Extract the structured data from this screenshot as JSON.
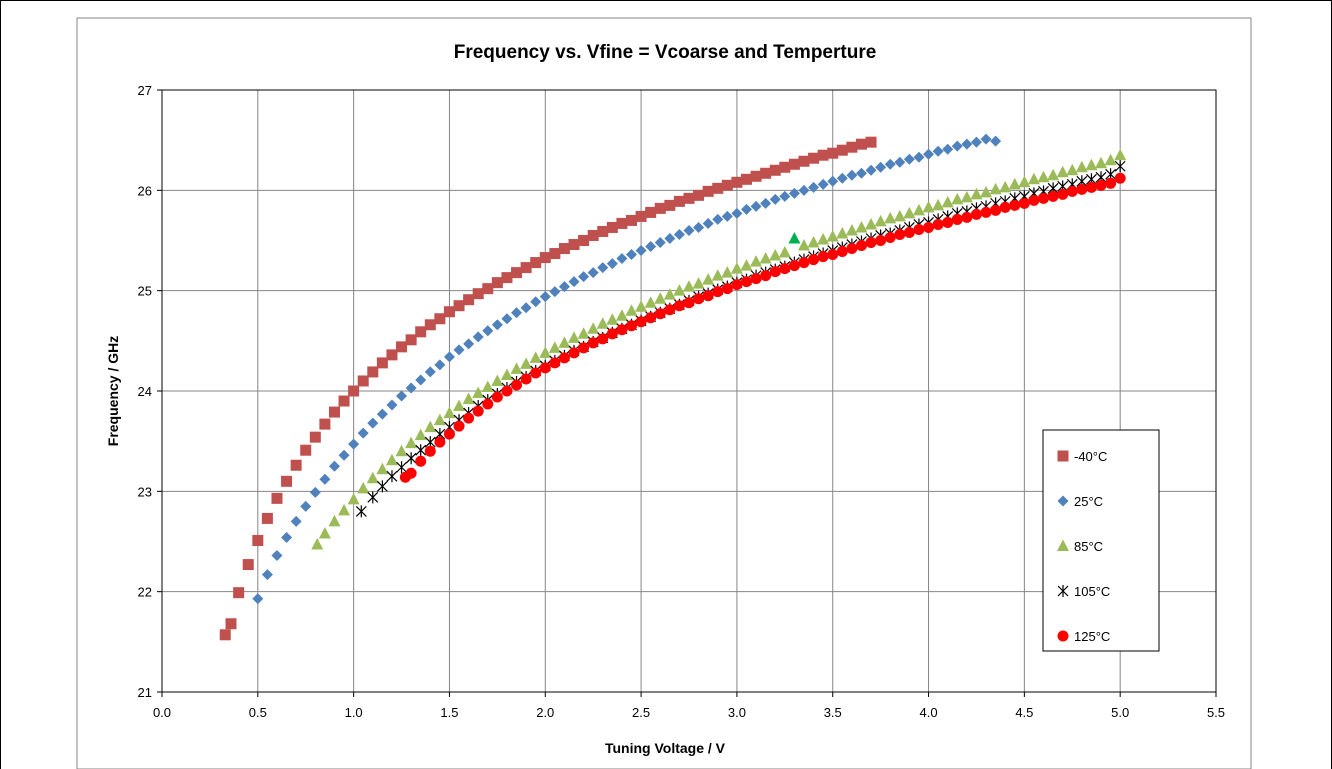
{
  "chart_data": {
    "type": "scatter",
    "title": "Frequency vs. Vfine = Vcoarse and Temperture",
    "xlabel": "Tuning Voltage / V",
    "ylabel": "Frequency / GHz",
    "xlim": [
      0.0,
      5.5
    ],
    "ylim": [
      21,
      27
    ],
    "x_ticks": [
      "0.0",
      "0.5",
      "1.0",
      "1.5",
      "2.0",
      "2.5",
      "3.0",
      "3.5",
      "4.0",
      "4.5",
      "5.0",
      "5.5"
    ],
    "y_ticks": [
      "21",
      "22",
      "23",
      "24",
      "25",
      "26",
      "27"
    ],
    "grid": true,
    "legend_position": "right",
    "series": [
      {
        "name": "-40°C",
        "marker": "square",
        "color": "#C0504D",
        "x": [
          0.33,
          0.36,
          0.4,
          0.45,
          0.5,
          0.55,
          0.6,
          0.65,
          0.7,
          0.75,
          0.8,
          0.85,
          0.9,
          0.95,
          1.0,
          1.05,
          1.1,
          1.15,
          1.2,
          1.25,
          1.3,
          1.35,
          1.4,
          1.45,
          1.5,
          1.55,
          1.6,
          1.65,
          1.7,
          1.75,
          1.8,
          1.85,
          1.9,
          1.95,
          2.0,
          2.05,
          2.1,
          2.15,
          2.2,
          2.25,
          2.3,
          2.35,
          2.4,
          2.45,
          2.5,
          2.55,
          2.6,
          2.65,
          2.7,
          2.75,
          2.8,
          2.85,
          2.9,
          2.95,
          3.0,
          3.05,
          3.1,
          3.15,
          3.2,
          3.25,
          3.3,
          3.35,
          3.4,
          3.45,
          3.5,
          3.55,
          3.6,
          3.65,
          3.7
        ],
        "y": [
          21.57,
          21.68,
          21.99,
          22.27,
          22.51,
          22.73,
          22.93,
          23.1,
          23.26,
          23.41,
          23.54,
          23.67,
          23.79,
          23.9,
          24.0,
          24.1,
          24.19,
          24.28,
          24.36,
          24.44,
          24.51,
          24.59,
          24.66,
          24.72,
          24.79,
          24.85,
          24.91,
          24.97,
          25.02,
          25.08,
          25.13,
          25.18,
          25.23,
          25.28,
          25.33,
          25.37,
          25.42,
          25.46,
          25.5,
          25.55,
          25.59,
          25.63,
          25.67,
          25.7,
          25.74,
          25.78,
          25.82,
          25.85,
          25.89,
          25.92,
          25.95,
          25.99,
          26.02,
          26.05,
          26.08,
          26.11,
          26.14,
          26.17,
          26.2,
          26.23,
          26.26,
          26.29,
          26.32,
          26.35,
          26.37,
          26.4,
          26.43,
          26.46,
          26.48
        ]
      },
      {
        "name": "25°C",
        "marker": "diamond",
        "color": "#4F81BD",
        "x": [
          0.5,
          0.55,
          0.6,
          0.65,
          0.7,
          0.75,
          0.8,
          0.85,
          0.9,
          0.95,
          1.0,
          1.05,
          1.1,
          1.15,
          1.2,
          1.25,
          1.3,
          1.35,
          1.4,
          1.45,
          1.5,
          1.55,
          1.6,
          1.65,
          1.7,
          1.75,
          1.8,
          1.85,
          1.9,
          1.95,
          2.0,
          2.05,
          2.1,
          2.15,
          2.2,
          2.25,
          2.3,
          2.35,
          2.4,
          2.45,
          2.5,
          2.55,
          2.6,
          2.65,
          2.7,
          2.75,
          2.8,
          2.85,
          2.9,
          2.95,
          3.0,
          3.05,
          3.1,
          3.15,
          3.2,
          3.25,
          3.3,
          3.35,
          3.4,
          3.45,
          3.5,
          3.55,
          3.6,
          3.65,
          3.7,
          3.75,
          3.8,
          3.85,
          3.9,
          3.95,
          4.0,
          4.05,
          4.1,
          4.15,
          4.2,
          4.25,
          4.3,
          4.35
        ],
        "y": [
          21.93,
          22.17,
          22.36,
          22.54,
          22.7,
          22.85,
          22.99,
          23.12,
          23.25,
          23.36,
          23.47,
          23.58,
          23.68,
          23.77,
          23.86,
          23.95,
          24.03,
          24.11,
          24.19,
          24.26,
          24.34,
          24.41,
          24.47,
          24.54,
          24.6,
          24.66,
          24.72,
          24.78,
          24.83,
          24.89,
          24.94,
          24.99,
          25.04,
          25.09,
          25.14,
          25.18,
          25.23,
          25.27,
          25.32,
          25.36,
          25.4,
          25.44,
          25.48,
          25.52,
          25.56,
          25.6,
          25.63,
          25.67,
          25.71,
          25.74,
          25.77,
          25.81,
          25.84,
          25.87,
          25.91,
          25.94,
          25.97,
          26.0,
          26.03,
          26.06,
          26.09,
          26.12,
          26.15,
          26.17,
          26.2,
          26.23,
          26.26,
          26.28,
          26.31,
          26.33,
          26.36,
          26.39,
          26.41,
          26.44,
          26.46,
          26.48,
          26.51,
          26.49
        ]
      },
      {
        "name": "85°C",
        "marker": "triangle",
        "color": "#9BBB59",
        "x": [
          0.81,
          0.85,
          0.9,
          0.95,
          1.0,
          1.05,
          1.1,
          1.15,
          1.2,
          1.25,
          1.3,
          1.35,
          1.4,
          1.45,
          1.5,
          1.55,
          1.6,
          1.65,
          1.7,
          1.75,
          1.8,
          1.85,
          1.9,
          1.95,
          2.0,
          2.05,
          2.1,
          2.15,
          2.2,
          2.25,
          2.3,
          2.35,
          2.4,
          2.45,
          2.5,
          2.55,
          2.6,
          2.65,
          2.7,
          2.75,
          2.8,
          2.85,
          2.9,
          2.95,
          3.0,
          3.05,
          3.1,
          3.15,
          3.2,
          3.25,
          3.3,
          3.35,
          3.4,
          3.45,
          3.5,
          3.55,
          3.6,
          3.65,
          3.7,
          3.75,
          3.8,
          3.85,
          3.9,
          3.95,
          4.0,
          4.05,
          4.1,
          4.15,
          4.2,
          4.25,
          4.3,
          4.35,
          4.4,
          4.45,
          4.5,
          4.55,
          4.6,
          4.65,
          4.7,
          4.75,
          4.8,
          4.85,
          4.9,
          4.95,
          5.0
        ],
        "y": [
          22.47,
          22.58,
          22.7,
          22.81,
          22.92,
          23.03,
          23.13,
          23.22,
          23.31,
          23.4,
          23.48,
          23.56,
          23.64,
          23.71,
          23.78,
          23.85,
          23.92,
          23.98,
          24.04,
          24.1,
          24.16,
          24.22,
          24.27,
          24.33,
          24.38,
          24.43,
          24.48,
          24.53,
          24.57,
          24.62,
          24.67,
          24.71,
          24.75,
          24.8,
          24.84,
          24.88,
          24.92,
          24.96,
          25.0,
          25.04,
          25.07,
          25.11,
          25.15,
          25.18,
          25.22,
          25.25,
          25.29,
          25.32,
          25.35,
          25.38,
          25.52,
          25.45,
          25.48,
          25.51,
          25.54,
          25.57,
          25.6,
          25.63,
          25.66,
          25.69,
          25.72,
          25.74,
          25.77,
          25.8,
          25.83,
          25.85,
          25.88,
          25.91,
          25.93,
          25.96,
          25.98,
          26.01,
          26.03,
          26.06,
          26.08,
          26.11,
          26.13,
          26.15,
          26.18,
          26.2,
          26.23,
          26.25,
          26.27,
          26.3,
          26.35
        ]
      },
      {
        "name": "105°C",
        "marker": "asterisk",
        "color": "#000000",
        "x": [
          1.04,
          1.1,
          1.15,
          1.2,
          1.25,
          1.3,
          1.35,
          1.4,
          1.45,
          1.5,
          1.55,
          1.6,
          1.65,
          1.7,
          1.75,
          1.8,
          1.85,
          1.9,
          1.95,
          2.0,
          2.05,
          2.1,
          2.15,
          2.2,
          2.25,
          2.3,
          2.35,
          2.4,
          2.45,
          2.5,
          2.55,
          2.6,
          2.65,
          2.7,
          2.75,
          2.8,
          2.85,
          2.9,
          2.95,
          3.0,
          3.05,
          3.1,
          3.15,
          3.2,
          3.25,
          3.3,
          3.35,
          3.4,
          3.45,
          3.5,
          3.55,
          3.6,
          3.65,
          3.7,
          3.75,
          3.8,
          3.85,
          3.9,
          3.95,
          4.0,
          4.05,
          4.1,
          4.15,
          4.2,
          4.25,
          4.3,
          4.35,
          4.4,
          4.45,
          4.5,
          4.55,
          4.6,
          4.65,
          4.7,
          4.75,
          4.8,
          4.85,
          4.9,
          4.95,
          5.0
        ],
        "y": [
          22.8,
          22.94,
          23.05,
          23.15,
          23.24,
          23.33,
          23.41,
          23.49,
          23.57,
          23.64,
          23.71,
          23.78,
          23.85,
          23.91,
          23.97,
          24.03,
          24.09,
          24.14,
          24.2,
          24.25,
          24.3,
          24.35,
          24.4,
          24.44,
          24.49,
          24.53,
          24.58,
          24.62,
          24.66,
          24.7,
          24.74,
          24.78,
          24.82,
          24.86,
          24.9,
          24.94,
          24.97,
          25.01,
          25.04,
          25.08,
          25.11,
          25.15,
          25.18,
          25.21,
          25.24,
          25.28,
          25.31,
          25.34,
          25.37,
          25.4,
          25.43,
          25.46,
          25.49,
          25.52,
          25.55,
          25.57,
          25.6,
          25.63,
          25.66,
          25.68,
          25.71,
          25.74,
          25.77,
          25.79,
          25.82,
          25.84,
          25.87,
          25.89,
          25.92,
          25.94,
          25.97,
          25.99,
          26.02,
          26.04,
          26.06,
          26.09,
          26.11,
          26.13,
          26.16,
          26.24
        ]
      },
      {
        "name": "125°C",
        "marker": "circle",
        "color": "#FF0000",
        "x": [
          1.27,
          1.3,
          1.35,
          1.4,
          1.45,
          1.5,
          1.55,
          1.6,
          1.65,
          1.7,
          1.75,
          1.8,
          1.85,
          1.9,
          1.95,
          2.0,
          2.05,
          2.1,
          2.15,
          2.2,
          2.25,
          2.3,
          2.35,
          2.4,
          2.45,
          2.5,
          2.55,
          2.6,
          2.65,
          2.7,
          2.75,
          2.8,
          2.85,
          2.9,
          2.95,
          3.0,
          3.05,
          3.1,
          3.15,
          3.2,
          3.25,
          3.3,
          3.35,
          3.4,
          3.45,
          3.5,
          3.55,
          3.6,
          3.65,
          3.7,
          3.75,
          3.8,
          3.85,
          3.9,
          3.95,
          4.0,
          4.05,
          4.1,
          4.15,
          4.2,
          4.25,
          4.3,
          4.35,
          4.4,
          4.45,
          4.5,
          4.55,
          4.6,
          4.65,
          4.7,
          4.75,
          4.8,
          4.85,
          4.9,
          4.95,
          5.0
        ],
        "y": [
          23.14,
          23.18,
          23.3,
          23.4,
          23.49,
          23.57,
          23.65,
          23.73,
          23.8,
          23.87,
          23.94,
          24.0,
          24.06,
          24.12,
          24.18,
          24.23,
          24.28,
          24.33,
          24.38,
          24.43,
          24.48,
          24.52,
          24.57,
          24.61,
          24.65,
          24.69,
          24.73,
          24.77,
          24.81,
          24.85,
          24.88,
          24.92,
          24.95,
          24.99,
          25.02,
          25.06,
          25.09,
          25.12,
          25.15,
          25.19,
          25.22,
          25.25,
          25.28,
          25.31,
          25.34,
          25.36,
          25.39,
          25.42,
          25.45,
          25.48,
          25.5,
          25.53,
          25.56,
          25.58,
          25.61,
          25.63,
          25.66,
          25.68,
          25.71,
          25.73,
          25.76,
          25.78,
          25.8,
          25.83,
          25.85,
          25.87,
          25.9,
          25.92,
          25.94,
          25.96,
          25.99,
          26.01,
          26.03,
          26.05,
          26.07,
          26.12
        ]
      }
    ]
  }
}
